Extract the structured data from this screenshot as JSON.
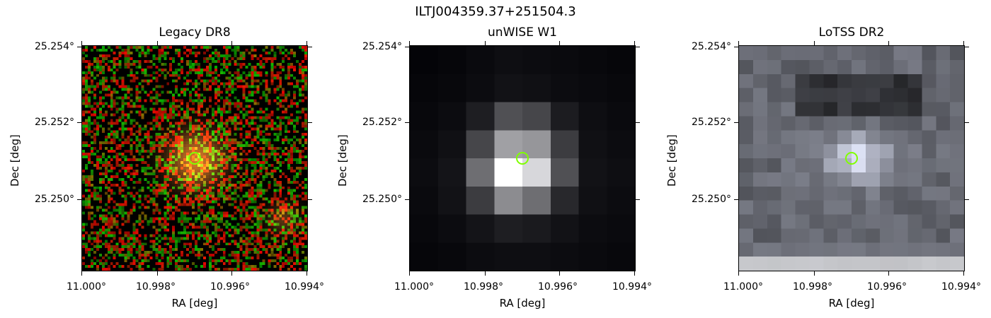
{
  "suptitle": "ILTJ004359.37+251504.3",
  "panels": [
    {
      "title": "Legacy DR8",
      "xlabel": "RA [deg]",
      "ylabel": "Dec [deg]",
      "yticks": [
        "25.254°",
        "25.252°",
        "25.250°"
      ],
      "xticks": [
        "11.000°",
        "10.998°",
        "10.996°",
        "10.994°"
      ],
      "style": "legacy"
    },
    {
      "title": "unWISE W1",
      "xlabel": "RA [deg]",
      "ylabel": "Dec [deg]",
      "yticks": [
        "25.254°",
        "25.252°",
        "25.250°"
      ],
      "xticks": [
        "11.000°",
        "10.998°",
        "10.996°",
        "10.994°"
      ],
      "style": "unwise"
    },
    {
      "title": "LoTSS DR2",
      "xlabel": "RA [deg]",
      "ylabel": "Dec [deg]",
      "yticks": [
        "25.254°",
        "25.252°",
        "25.250°"
      ],
      "xticks": [
        "11.000°",
        "10.998°",
        "10.996°",
        "10.994°"
      ],
      "style": "lotss"
    }
  ],
  "marker_color": "#80ff00"
}
